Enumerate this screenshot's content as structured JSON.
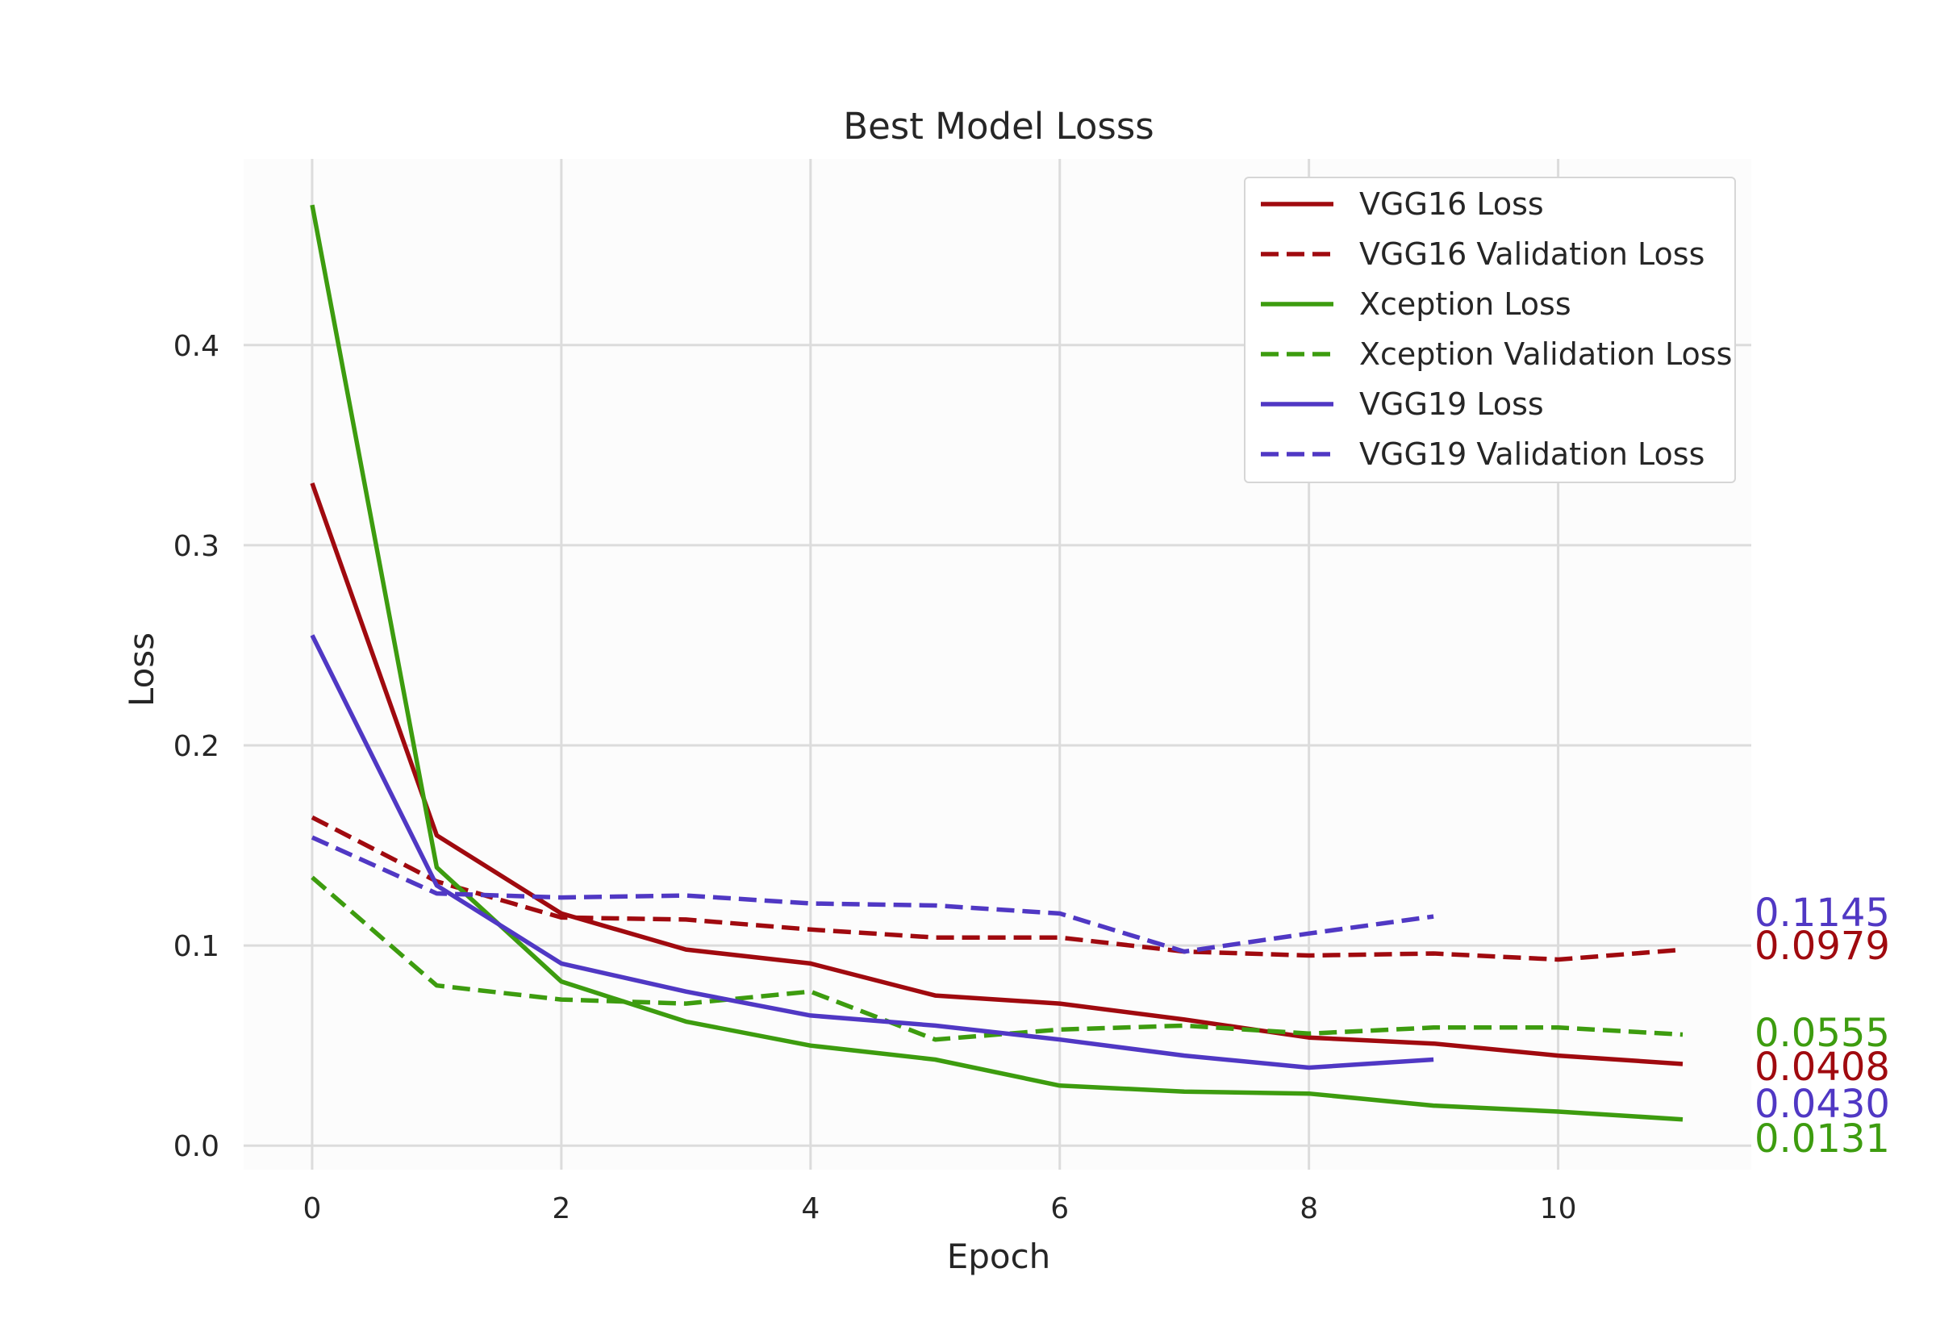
{
  "chart_data": {
    "type": "line",
    "title": "Best Model Losss",
    "xlabel": "Epoch",
    "ylabel": "Loss",
    "xlim": [
      -0.55,
      11.55
    ],
    "ylim": [
      -0.012,
      0.493
    ],
    "xticks": [
      0,
      2,
      4,
      6,
      8,
      10
    ],
    "yticks": [
      0.0,
      0.1,
      0.2,
      0.3,
      0.4
    ],
    "xtick_labels": [
      "0",
      "2",
      "4",
      "6",
      "8",
      "10"
    ],
    "ytick_labels": [
      "0.0",
      "0.1",
      "0.2",
      "0.3",
      "0.4"
    ],
    "grid": true,
    "legend_position": "top-right",
    "series": [
      {
        "name": "VGG16 Loss",
        "color": "#a00a0f",
        "dash": "solid",
        "x": [
          0,
          1,
          2,
          3,
          4,
          5,
          6,
          7,
          8,
          9,
          10,
          11
        ],
        "y": [
          0.331,
          0.155,
          0.116,
          0.098,
          0.091,
          0.075,
          0.071,
          0.063,
          0.054,
          0.051,
          0.045,
          0.0408
        ]
      },
      {
        "name": "VGG16 Validation Loss",
        "color": "#a00a0f",
        "dash": "dashed",
        "x": [
          0,
          1,
          2,
          3,
          4,
          5,
          6,
          7,
          8,
          9,
          10,
          11
        ],
        "y": [
          0.164,
          0.132,
          0.114,
          0.113,
          0.108,
          0.104,
          0.104,
          0.097,
          0.095,
          0.096,
          0.093,
          0.0979
        ]
      },
      {
        "name": "Xception Loss",
        "color": "#3d9c0f",
        "dash": "solid",
        "x": [
          0,
          1,
          2,
          3,
          4,
          5,
          6,
          7,
          8,
          9,
          10,
          11
        ],
        "y": [
          0.47,
          0.139,
          0.082,
          0.062,
          0.05,
          0.043,
          0.03,
          0.027,
          0.026,
          0.02,
          0.017,
          0.0131
        ]
      },
      {
        "name": "Xception Validation Loss",
        "color": "#3d9c0f",
        "dash": "dashed",
        "x": [
          0,
          1,
          2,
          3,
          4,
          5,
          6,
          7,
          8,
          9,
          10,
          11
        ],
        "y": [
          0.134,
          0.08,
          0.073,
          0.071,
          0.077,
          0.053,
          0.058,
          0.06,
          0.056,
          0.059,
          0.059,
          0.0555
        ]
      },
      {
        "name": "VGG19 Loss",
        "color": "#5038c4",
        "dash": "solid",
        "x": [
          0,
          1,
          2,
          3,
          4,
          5,
          6,
          7,
          8,
          9
        ],
        "y": [
          0.255,
          0.13,
          0.091,
          0.077,
          0.065,
          0.06,
          0.053,
          0.045,
          0.039,
          0.043
        ]
      },
      {
        "name": "VGG19 Validation Loss",
        "color": "#5038c4",
        "dash": "dashed",
        "x": [
          0,
          1,
          2,
          3,
          4,
          5,
          6,
          7,
          8,
          9
        ],
        "y": [
          0.154,
          0.126,
          0.124,
          0.125,
          0.121,
          0.12,
          0.116,
          0.097,
          0.106,
          0.1145
        ]
      }
    ],
    "end_labels": [
      {
        "text": "0.1145",
        "color": "#5038c4"
      },
      {
        "text": "0.0979",
        "color": "#a00a0f"
      },
      {
        "text": "0.0555",
        "color": "#3d9c0f"
      },
      {
        "text": "0.0408",
        "color": "#a00a0f"
      },
      {
        "text": "0.0430",
        "color": "#5038c4"
      },
      {
        "text": "0.0131",
        "color": "#3d9c0f"
      }
    ],
    "colors": {
      "plot_background": "#fcfcfc",
      "grid": "#dcdcdc",
      "text": "#262626"
    }
  }
}
